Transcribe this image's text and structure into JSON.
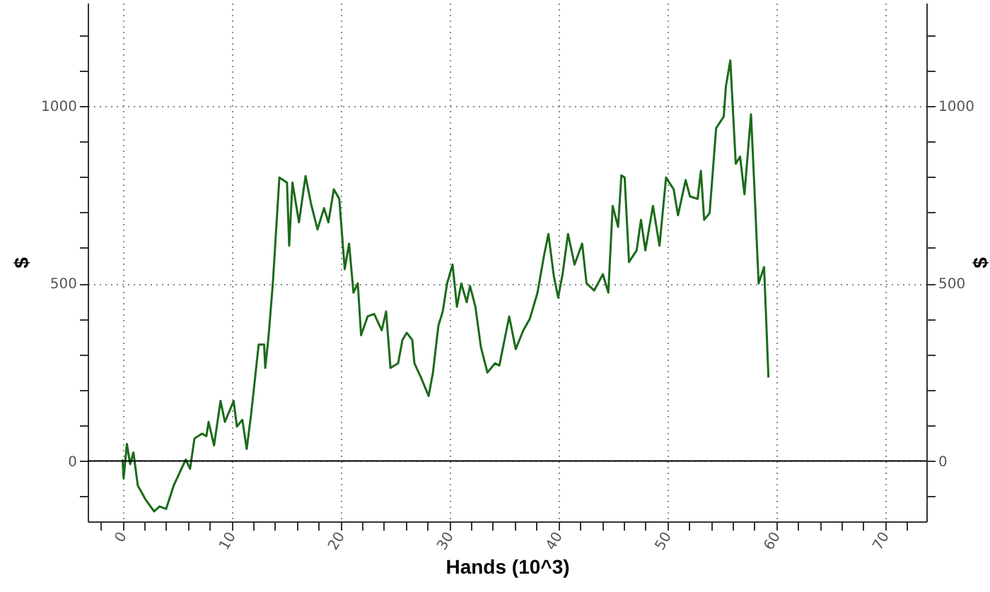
{
  "chart_data": {
    "type": "line",
    "xlabel": "Hands (10^3)",
    "ylabel": "$",
    "y2label": "$",
    "x": [
      0,
      0.1,
      0.4,
      0.7,
      1.0,
      1.4,
      2.1,
      2.9,
      3.4,
      4.0,
      4.7,
      5.8,
      6.2,
      6.6,
      7.3,
      7.7,
      7.9,
      8.4,
      9.0,
      9.4,
      10.2,
      10.5,
      11.0,
      11.4,
      11.8,
      12.5,
      13.0,
      13.1,
      13.4,
      13.8,
      14.4,
      15.1,
      15.3,
      15.6,
      16.2,
      16.8,
      17.3,
      17.9,
      18.5,
      18.9,
      19.4,
      19.9,
      20.4,
      20.8,
      21.2,
      21.6,
      21.9,
      22.5,
      23.1,
      23.8,
      24.2,
      24.6,
      25.3,
      25.7,
      26.1,
      26.6,
      26.8,
      27.4,
      28.1,
      28.5,
      29.0,
      29.4,
      29.8,
      30.3,
      30.7,
      31.1,
      31.6,
      31.9,
      32.4,
      32.9,
      33.5,
      34.2,
      34.6,
      35.5,
      36.1,
      36.8,
      37.4,
      38.1,
      38.7,
      39.1,
      39.6,
      40.0,
      40.4,
      40.9,
      41.5,
      42.2,
      42.6,
      43.3,
      44.1,
      44.6,
      45.0,
      45.5,
      45.8,
      46.1,
      46.5,
      47.2,
      47.6,
      48.0,
      48.7,
      49.3,
      49.9,
      50.6,
      51.0,
      51.7,
      52.1,
      52.8,
      53.1,
      53.4,
      53.9,
      54.5,
      55.2,
      55.4,
      55.8,
      56.3,
      56.7,
      57.1,
      57.7,
      58.0,
      58.4,
      58.9,
      59.1,
      59.3
    ],
    "series": [
      {
        "color": "#1a6b1a",
        "values": [
          4,
          -49,
          48,
          -9,
          24,
          -69,
          -108,
          -142,
          -128,
          -135,
          -69,
          4,
          -22,
          63,
          77,
          70,
          110,
          44,
          169,
          110,
          169,
          97,
          116,
          34,
          130,
          328,
          328,
          262,
          348,
          500,
          798,
          784,
          606,
          784,
          672,
          802,
          725,
          652,
          712,
          672,
          765,
          738,
          540,
          612,
          474,
          500,
          354,
          407,
          414,
          368,
          421,
          262,
          275,
          341,
          361,
          341,
          275,
          235,
          183,
          249,
          381,
          421,
          500,
          553,
          434,
          500,
          447,
          493,
          434,
          321,
          249,
          275,
          269,
          407,
          315,
          368,
          401,
          474,
          579,
          639,
          520,
          460,
          526,
          639,
          553,
          612,
          500,
          480,
          526,
          474,
          718,
          659,
          804,
          798,
          560,
          593,
          679,
          593,
          718,
          606,
          798,
          765,
          692,
          791,
          745,
          738,
          817,
          679,
          698,
          937,
          970,
          1056,
          1128,
          837,
          857,
          751,
          976,
          778,
          500,
          546,
          394,
          235
        ]
      }
    ],
    "xlim": [
      -3.2,
      73.8
    ],
    "xticks": [
      {
        "value": -2,
        "label": null
      },
      0,
      {
        "value": 2,
        "label": null
      },
      {
        "value": 4,
        "label": null
      },
      {
        "value": 6,
        "label": null
      },
      {
        "value": 8,
        "label": null
      },
      10,
      {
        "value": 12,
        "label": null
      },
      {
        "value": 14,
        "label": null
      },
      {
        "value": 16,
        "label": null
      },
      {
        "value": 18,
        "label": null
      },
      20,
      {
        "value": 22,
        "label": null
      },
      {
        "value": 24,
        "label": null
      },
      {
        "value": 26,
        "label": null
      },
      {
        "value": 28,
        "label": null
      },
      30,
      {
        "value": 32,
        "label": null
      },
      {
        "value": 34,
        "label": null
      },
      {
        "value": 36,
        "label": null
      },
      {
        "value": 38,
        "label": null
      },
      40,
      {
        "value": 42,
        "label": null
      },
      {
        "value": 44,
        "label": null
      },
      {
        "value": 46,
        "label": null
      },
      {
        "value": 48,
        "label": null
      },
      50,
      {
        "value": 52,
        "label": null
      },
      {
        "value": 54,
        "label": null
      },
      {
        "value": 56,
        "label": null
      },
      {
        "value": 58,
        "label": null
      },
      60,
      {
        "value": 62,
        "label": null
      },
      {
        "value": 64,
        "label": null
      },
      {
        "value": 66,
        "label": null
      },
      {
        "value": 68,
        "label": null
      },
      70,
      {
        "value": 72,
        "label": null
      }
    ],
    "ylim": [
      -170,
      1290
    ],
    "yticks": [
      {
        "value": -100,
        "label": null
      },
      0,
      {
        "value": 100,
        "label": null
      },
      {
        "value": 200,
        "label": null
      },
      {
        "value": 300,
        "label": null
      },
      {
        "value": 400,
        "label": null
      },
      500,
      {
        "value": 600,
        "label": null
      },
      {
        "value": 700,
        "label": null
      },
      {
        "value": 800,
        "label": null
      },
      {
        "value": 900,
        "label": null
      },
      1000,
      {
        "value": 1100,
        "label": null
      },
      {
        "value": 1200,
        "label": null
      }
    ],
    "y2lim": [
      -170,
      1290
    ],
    "y2ticks": [
      {
        "value": -100,
        "label": null
      },
      0,
      {
        "value": 100,
        "label": null
      },
      {
        "value": 200,
        "label": null
      },
      {
        "value": 300,
        "label": null
      },
      {
        "value": 400,
        "label": null
      },
      500,
      {
        "value": 600,
        "label": null
      },
      {
        "value": 700,
        "label": null
      },
      {
        "value": 800,
        "label": null
      },
      {
        "value": 900,
        "label": null
      },
      1000,
      {
        "value": 1100,
        "label": null
      },
      {
        "value": 1200,
        "label": null
      }
    ],
    "grid": true,
    "ref_lines": [
      {
        "axis": "y",
        "value": 0,
        "color": "#000000"
      }
    ]
  }
}
